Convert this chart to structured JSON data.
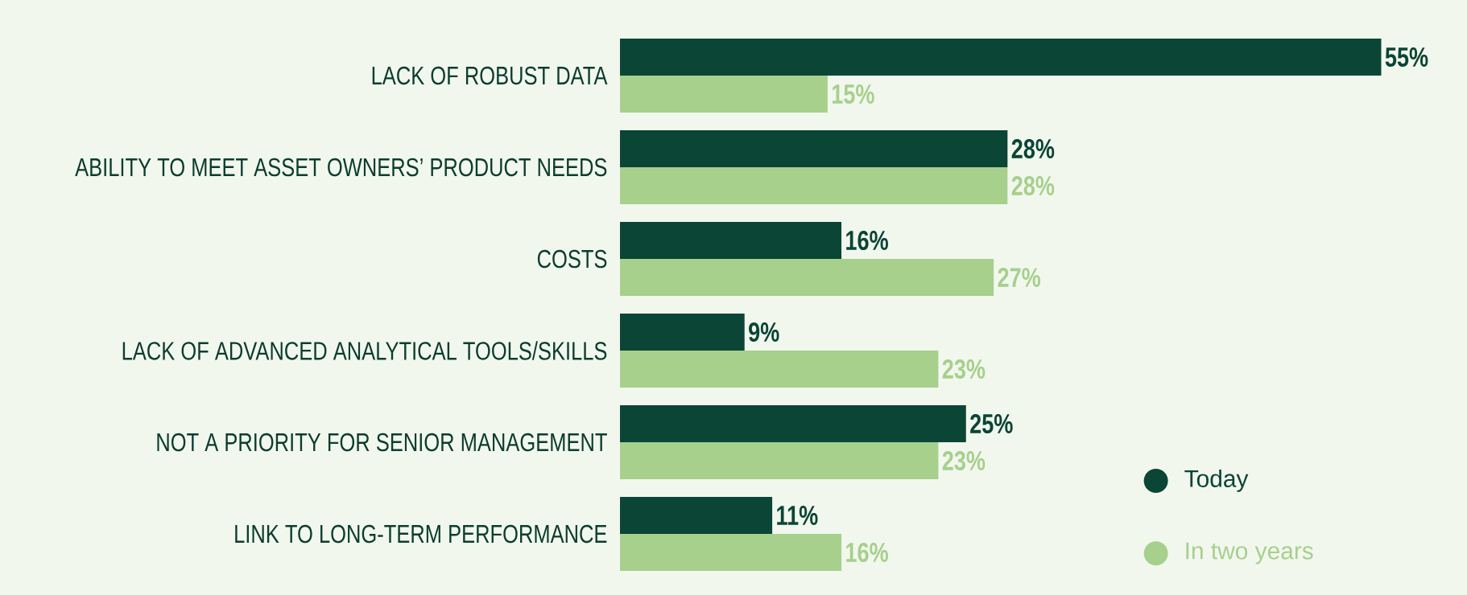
{
  "chart_data": {
    "type": "bar",
    "orientation": "horizontal",
    "categories": [
      "LACK OF ROBUST DATA",
      "ABILITY TO MEET ASSET OWNERS’ PRODUCT NEEDS",
      "COSTS",
      "LACK OF ADVANCED ANALYTICAL TOOLS/SKILLS",
      "NOT A PRIORITY FOR SENIOR MANAGEMENT",
      "LINK TO LONG-TERM PERFORMANCE"
    ],
    "series": [
      {
        "name": "Today",
        "color": "#0b4535",
        "values": [
          55,
          28,
          16,
          9,
          25,
          11
        ],
        "value_labels": [
          "55%",
          "28%",
          "16%",
          "9%",
          "25%",
          "11%"
        ]
      },
      {
        "name": "In two years",
        "color": "#a6d08c",
        "values": [
          15,
          28,
          27,
          23,
          23,
          16
        ],
        "value_labels": [
          "15%",
          "28%",
          "27%",
          "23%",
          "23%",
          "16%"
        ]
      }
    ],
    "legend": "bottom right"
  }
}
